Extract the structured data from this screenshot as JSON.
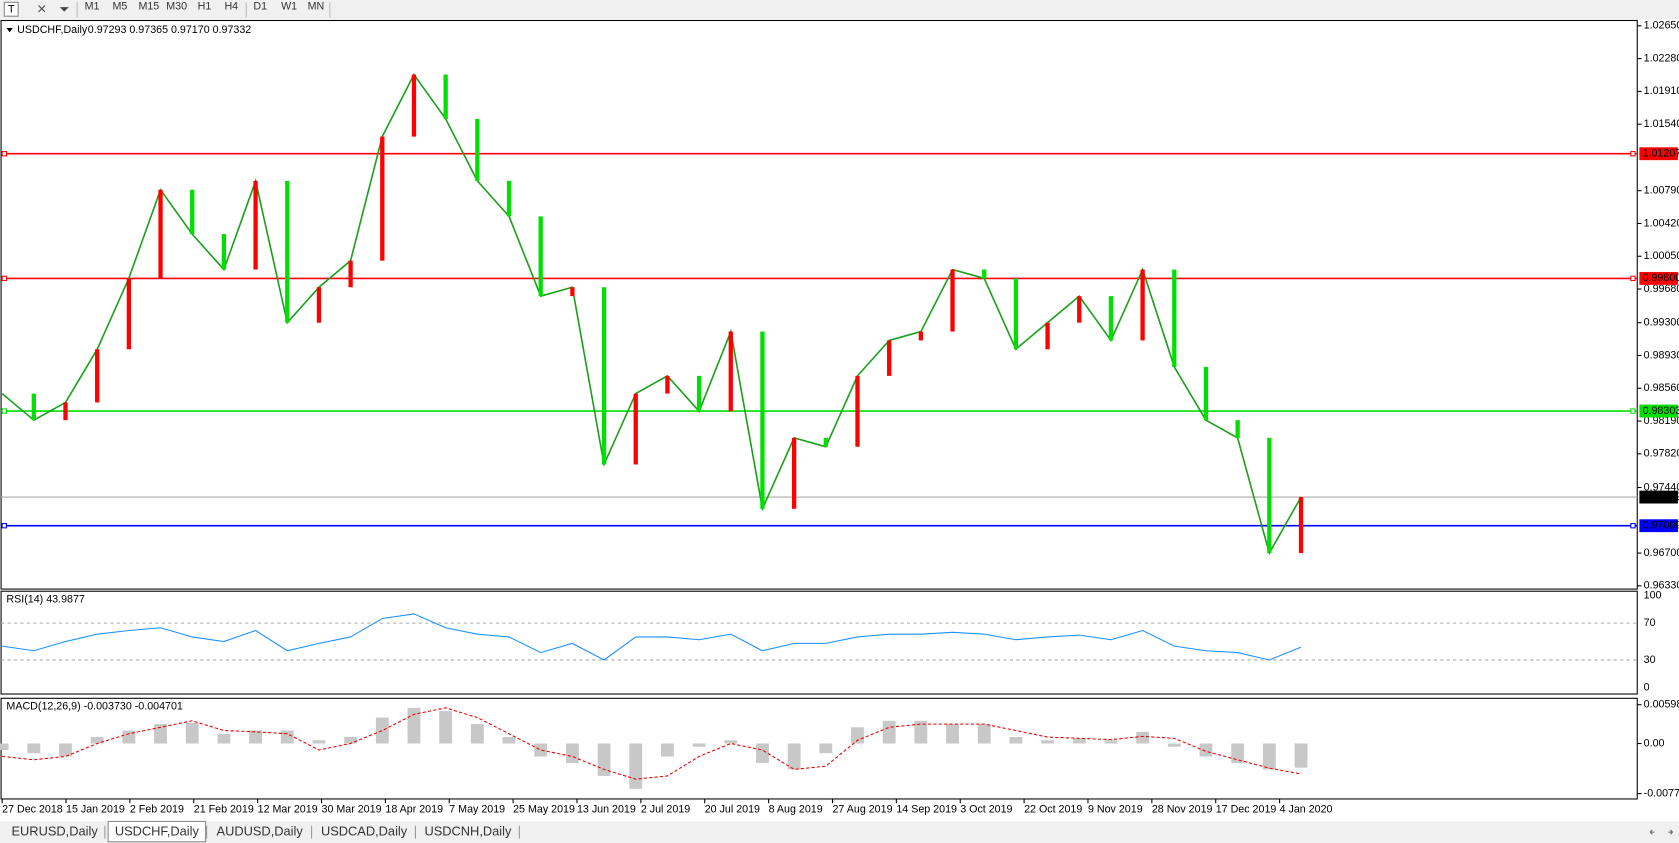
{
  "toolbar": {
    "timeframes": [
      "M1",
      "M5",
      "M15",
      "M30",
      "H1",
      "H4",
      "D1",
      "W1",
      "MN"
    ]
  },
  "chart": {
    "symbol": "USDCHF,Daily",
    "ohlc": "0.97293 0.97365 0.97170 0.97332",
    "ylim": [
      0.9633,
      1.0265
    ],
    "yticks": [
      {
        "value": 1.0265,
        "label": "1.02650"
      },
      {
        "value": 1.0228,
        "label": "1.02280"
      },
      {
        "value": 1.0191,
        "label": "1.01910"
      },
      {
        "value": 1.0154,
        "label": "1.01540"
      },
      {
        "value": 1.0079,
        "label": "1.00790"
      },
      {
        "value": 1.0042,
        "label": "1.00420"
      },
      {
        "value": 1.0005,
        "label": "1.00050"
      },
      {
        "value": 0.9968,
        "label": "0.99680"
      },
      {
        "value": 0.993,
        "label": "0.99300"
      },
      {
        "value": 0.9893,
        "label": "0.98930"
      },
      {
        "value": 0.9856,
        "label": "0.98560"
      },
      {
        "value": 0.9819,
        "label": "0.98190"
      },
      {
        "value": 0.9782,
        "label": "0.97820"
      },
      {
        "value": 0.9744,
        "label": "0.97440"
      },
      {
        "value": 0.967,
        "label": "0.96700"
      },
      {
        "value": 0.9633,
        "label": "0.96330"
      }
    ],
    "closes": [
      0.985,
      0.982,
      0.984,
      0.99,
      0.998,
      1.008,
      1.003,
      0.999,
      1.009,
      0.993,
      0.997,
      1.0,
      1.014,
      1.021,
      1.016,
      1.009,
      1.005,
      0.996,
      0.997,
      0.977,
      0.985,
      0.987,
      0.983,
      0.992,
      0.972,
      0.98,
      0.979,
      0.987,
      0.991,
      0.992,
      0.999,
      0.998,
      0.99,
      0.993,
      0.996,
      0.991,
      0.999,
      0.988,
      0.982,
      0.98,
      0.967,
      0.97332
    ],
    "levels": [
      {
        "value": 1.01207,
        "label": "1.01207",
        "color": "#ff0000"
      },
      {
        "value": 0.998,
        "label": "0.99800",
        "color": "#ff0000"
      },
      {
        "value": 0.98303,
        "label": "0.98303",
        "color": "#00e000"
      },
      {
        "value": 0.97009,
        "label": "0.97009",
        "color": "#0000ff"
      }
    ],
    "current": {
      "value": 0.97332,
      "label": "0.97332"
    },
    "dates": [
      "27 Dec 2018",
      "15 Jan 2019",
      "2 Feb 2019",
      "21 Feb 2019",
      "12 Mar 2019",
      "30 Mar 2019",
      "18 Apr 2019",
      "7 May 2019",
      "25 May 2019",
      "13 Jun 2019",
      "2 Jul 2019",
      "20 Jul 2019",
      "8 Aug 2019",
      "27 Aug 2019",
      "14 Sep 2019",
      "3 Oct 2019",
      "22 Oct 2019",
      "9 Nov 2019",
      "28 Nov 2019",
      "17 Dec 2019",
      "4 Jan 2020"
    ]
  },
  "rsi": {
    "label": "RSI(14) 43.9877",
    "ylim": [
      0,
      100
    ],
    "yticks": [
      100,
      70,
      30,
      0
    ],
    "levels": [
      70,
      30
    ],
    "values": [
      45,
      40,
      50,
      58,
      62,
      65,
      55,
      50,
      62,
      40,
      48,
      55,
      75,
      80,
      65,
      58,
      55,
      38,
      48,
      30,
      55,
      55,
      52,
      58,
      40,
      48,
      48,
      55,
      58,
      58,
      60,
      58,
      52,
      55,
      57,
      52,
      62,
      45,
      40,
      38,
      30,
      43.9877
    ]
  },
  "macd": {
    "label": "MACD(12,26,9) -0.003730 -0.004701",
    "ylim": [
      -0.00773,
      0.005986
    ],
    "yticks": [
      0.005986,
      {
        "value": 0,
        "label": "0.00"
      },
      -0.00773
    ],
    "histogram": [
      -0.001,
      -0.0015,
      -0.002,
      0.001,
      0.002,
      0.003,
      0.0032,
      0.0015,
      0.002,
      0.002,
      0.0005,
      0.001,
      0.004,
      0.0055,
      0.005,
      0.003,
      0.001,
      -0.002,
      -0.003,
      -0.005,
      -0.007,
      -0.002,
      -0.0005,
      0.0005,
      -0.003,
      -0.004,
      -0.0015,
      0.0025,
      0.0035,
      0.0035,
      0.003,
      0.003,
      0.001,
      0.0005,
      0.0008,
      0.0005,
      0.0018,
      -0.0005,
      -0.002,
      -0.003,
      -0.004,
      -0.00373
    ],
    "signal": [
      -0.002,
      -0.0025,
      -0.002,
      0,
      0.0015,
      0.0025,
      0.0035,
      0.002,
      0.0018,
      0.0015,
      -0.001,
      0,
      0.002,
      0.0045,
      0.0055,
      0.004,
      0.0015,
      -0.001,
      -0.002,
      -0.004,
      -0.0055,
      -0.005,
      -0.002,
      0,
      -0.001,
      -0.004,
      -0.0035,
      0.0005,
      0.0025,
      0.003,
      0.003,
      0.003,
      0.002,
      0.001,
      0.0008,
      0.0006,
      0.0011,
      0.0008,
      -0.0012,
      -0.0025,
      -0.0038,
      -0.004701
    ]
  },
  "tabs": [
    "EURUSD,Daily",
    "USDCHF,Daily",
    "AUDUSD,Daily",
    "USDCAD,Daily",
    "USDCNH,Daily"
  ]
}
